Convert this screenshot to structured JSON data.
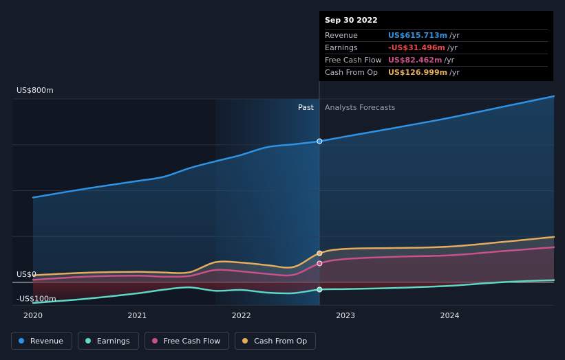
{
  "chart_data": {
    "type": "area",
    "x_ticks": [
      "2020",
      "2021",
      "2022",
      "2023",
      "2024"
    ],
    "y_ticks": [
      "US$800m",
      "US$0",
      "-US$100m"
    ],
    "ylim": [
      -100,
      800
    ],
    "divider_labels": {
      "past": "Past",
      "forecast": "Analysts Forecasts"
    },
    "current_date": 2022.75,
    "series": [
      {
        "name": "Revenue",
        "color": "#2e93e6",
        "points": [
          [
            2020,
            370
          ],
          [
            2020.5,
            408
          ],
          [
            2021,
            442
          ],
          [
            2021.25,
            460
          ],
          [
            2021.5,
            498
          ],
          [
            2021.75,
            528
          ],
          [
            2022,
            556
          ],
          [
            2022.25,
            590
          ],
          [
            2022.5,
            602
          ],
          [
            2022.75,
            615.713
          ],
          [
            2023,
            636
          ],
          [
            2023.5,
            676
          ],
          [
            2024,
            718
          ],
          [
            2024.5,
            765
          ],
          [
            2025,
            812
          ]
        ]
      },
      {
        "name": "Earnings",
        "color": "#5dd8c6",
        "points": [
          [
            2020,
            -90
          ],
          [
            2020.5,
            -72
          ],
          [
            2021,
            -48
          ],
          [
            2021.25,
            -32
          ],
          [
            2021.5,
            -22
          ],
          [
            2021.75,
            -37
          ],
          [
            2022,
            -33
          ],
          [
            2022.25,
            -45
          ],
          [
            2022.5,
            -47
          ],
          [
            2022.75,
            -31.496
          ],
          [
            2023,
            -29
          ],
          [
            2023.5,
            -24
          ],
          [
            2024,
            -15
          ],
          [
            2024.5,
            1
          ],
          [
            2025,
            10
          ]
        ]
      },
      {
        "name": "Free Cash Flow",
        "color": "#c9518a",
        "points": [
          [
            2020,
            11
          ],
          [
            2020.5,
            25
          ],
          [
            2021,
            29
          ],
          [
            2021.25,
            25
          ],
          [
            2021.5,
            28
          ],
          [
            2021.75,
            54
          ],
          [
            2022,
            48
          ],
          [
            2022.25,
            37
          ],
          [
            2022.5,
            33
          ],
          [
            2022.75,
            82.462
          ],
          [
            2023,
            102
          ],
          [
            2023.5,
            112
          ],
          [
            2024,
            118
          ],
          [
            2024.5,
            136
          ],
          [
            2025,
            153
          ]
        ]
      },
      {
        "name": "Cash From Op",
        "color": "#e6ac5e",
        "points": [
          [
            2020,
            31
          ],
          [
            2020.5,
            42
          ],
          [
            2021,
            46
          ],
          [
            2021.25,
            43
          ],
          [
            2021.5,
            44
          ],
          [
            2021.75,
            88
          ],
          [
            2022,
            86
          ],
          [
            2022.25,
            75
          ],
          [
            2022.5,
            67
          ],
          [
            2022.75,
            126.999
          ],
          [
            2023,
            146
          ],
          [
            2023.5,
            150
          ],
          [
            2024,
            156
          ],
          [
            2024.5,
            176
          ],
          [
            2025,
            198
          ]
        ]
      }
    ]
  },
  "tooltip": {
    "date": "Sep 30 2022",
    "rows": [
      {
        "label": "Revenue",
        "value": "US$615.713m",
        "unit": "/yr",
        "color": "#2e93e6"
      },
      {
        "label": "Earnings",
        "value": "-US$31.496m",
        "unit": "/yr",
        "color": "#e8484a"
      },
      {
        "label": "Free Cash Flow",
        "value": "US$82.462m",
        "unit": "/yr",
        "color": "#c9518a"
      },
      {
        "label": "Cash From Op",
        "value": "US$126.999m",
        "unit": "/yr",
        "color": "#e6ac5e"
      }
    ]
  },
  "legend": [
    {
      "label": "Revenue",
      "color": "#2e93e6"
    },
    {
      "label": "Earnings",
      "color": "#5dd8c6"
    },
    {
      "label": "Free Cash Flow",
      "color": "#c9518a"
    },
    {
      "label": "Cash From Op",
      "color": "#e6ac5e"
    }
  ]
}
